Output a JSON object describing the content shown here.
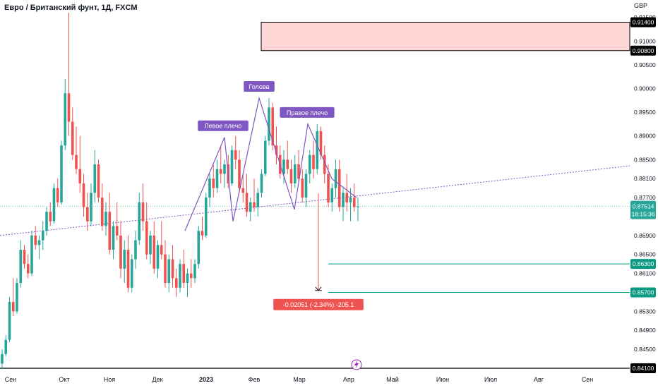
{
  "chart_data": {
    "type": "candlestick",
    "symbol_title": "Евро / Британский фунт, 1Д, FXCM",
    "currency": "GBP",
    "colors": {
      "up": "#26a69a",
      "down": "#ef5350",
      "pattern": "#7e57c2",
      "box_fill": "#ffd6d6",
      "level": "#089981",
      "measure": "#ef5350"
    },
    "y_range": [
      0.841,
      0.916
    ],
    "y_ticks": [
      "0.91500",
      "0.91000",
      "0.90500",
      "0.90000",
      "0.89500",
      "0.89000",
      "0.88500",
      "0.88100",
      "0.87700",
      "0.86900",
      "0.86500",
      "0.86100",
      "0.85300",
      "0.84900",
      "0.84500"
    ],
    "x_labels": [
      "Сен",
      "Окт",
      "Ноя",
      "Дек",
      "2023",
      "Фев",
      "Мар",
      "Апр",
      "Май",
      "Июн",
      "Июл",
      "Авг",
      "Сен"
    ],
    "current_price": {
      "value": "0.87514",
      "countdown": "18:15:36"
    },
    "price_tags": [
      {
        "value": "0.91400",
        "style": "box"
      },
      {
        "value": "0.90800",
        "style": "box"
      },
      {
        "value": "0.86300",
        "style": "green"
      },
      {
        "value": "0.85700",
        "style": "green"
      },
      {
        "value": "0.84100",
        "style": "box"
      }
    ],
    "supply_zone": {
      "top": 0.914,
      "bottom": 0.908
    },
    "support_line": {
      "price": 0.841
    },
    "target_levels": [
      0.863,
      0.857
    ],
    "pattern_labels": [
      {
        "text": "Левое плечо",
        "price": 0.8897
      },
      {
        "text": "Голова",
        "price": 0.898
      },
      {
        "text": "Правое плечо",
        "price": 0.8925
      }
    ],
    "measure_label": "-0.02051 (-2.34%) -205.1",
    "measure_range": [
      0.8779,
      0.8574
    ],
    "neckline": {
      "from_price": 0.869,
      "to_price": 0.8837
    },
    "candles": [
      [
        0.842,
        0.845,
        0.8408,
        0.844
      ],
      [
        0.844,
        0.848,
        0.8435,
        0.847
      ],
      [
        0.847,
        0.856,
        0.8465,
        0.855
      ],
      [
        0.855,
        0.86,
        0.852,
        0.853
      ],
      [
        0.853,
        0.86,
        0.8525,
        0.859
      ],
      [
        0.859,
        0.868,
        0.858,
        0.866
      ],
      [
        0.866,
        0.867,
        0.862,
        0.863
      ],
      [
        0.863,
        0.865,
        0.86,
        0.861
      ],
      [
        0.861,
        0.87,
        0.8605,
        0.869
      ],
      [
        0.869,
        0.871,
        0.866,
        0.867
      ],
      [
        0.867,
        0.869,
        0.864,
        0.868
      ],
      [
        0.868,
        0.872,
        0.866,
        0.87
      ],
      [
        0.87,
        0.875,
        0.869,
        0.874
      ],
      [
        0.874,
        0.876,
        0.871,
        0.872
      ],
      [
        0.872,
        0.88,
        0.8715,
        0.879
      ],
      [
        0.879,
        0.881,
        0.875,
        0.876
      ],
      [
        0.876,
        0.889,
        0.8755,
        0.888
      ],
      [
        0.888,
        0.902,
        0.887,
        0.899
      ],
      [
        0.899,
        0.916,
        0.89,
        0.893
      ],
      [
        0.893,
        0.896,
        0.885,
        0.886
      ],
      [
        0.886,
        0.892,
        0.882,
        0.883
      ],
      [
        0.883,
        0.89,
        0.878,
        0.88
      ],
      [
        0.88,
        0.882,
        0.873,
        0.875
      ],
      [
        0.875,
        0.878,
        0.87,
        0.872
      ],
      [
        0.872,
        0.88,
        0.871,
        0.878
      ],
      [
        0.878,
        0.887,
        0.876,
        0.884
      ],
      [
        0.884,
        0.885,
        0.876,
        0.877
      ],
      [
        0.877,
        0.88,
        0.87,
        0.871
      ],
      [
        0.871,
        0.876,
        0.869,
        0.874
      ],
      [
        0.874,
        0.878,
        0.865,
        0.866
      ],
      [
        0.866,
        0.872,
        0.864,
        0.871
      ],
      [
        0.871,
        0.876,
        0.868,
        0.869
      ],
      [
        0.869,
        0.872,
        0.86,
        0.862
      ],
      [
        0.862,
        0.868,
        0.859,
        0.866
      ],
      [
        0.866,
        0.869,
        0.857,
        0.858
      ],
      [
        0.858,
        0.865,
        0.857,
        0.864
      ],
      [
        0.864,
        0.87,
        0.862,
        0.868
      ],
      [
        0.868,
        0.878,
        0.867,
        0.876
      ],
      [
        0.876,
        0.88,
        0.87,
        0.872
      ],
      [
        0.872,
        0.876,
        0.864,
        0.865
      ],
      [
        0.865,
        0.87,
        0.863,
        0.869
      ],
      [
        0.869,
        0.872,
        0.861,
        0.862
      ],
      [
        0.862,
        0.868,
        0.86,
        0.867
      ],
      [
        0.867,
        0.872,
        0.864,
        0.865
      ],
      [
        0.865,
        0.868,
        0.858,
        0.859
      ],
      [
        0.859,
        0.865,
        0.857,
        0.864
      ],
      [
        0.864,
        0.867,
        0.858,
        0.86
      ],
      [
        0.86,
        0.862,
        0.856,
        0.858
      ],
      [
        0.858,
        0.864,
        0.857,
        0.863
      ],
      [
        0.863,
        0.866,
        0.858,
        0.859
      ],
      [
        0.859,
        0.862,
        0.856,
        0.861
      ],
      [
        0.861,
        0.864,
        0.858,
        0.86
      ],
      [
        0.86,
        0.864,
        0.859,
        0.863
      ],
      [
        0.863,
        0.871,
        0.862,
        0.87
      ],
      [
        0.87,
        0.873,
        0.868,
        0.869
      ],
      [
        0.869,
        0.878,
        0.8685,
        0.877
      ],
      [
        0.877,
        0.882,
        0.875,
        0.881
      ],
      [
        0.881,
        0.884,
        0.877,
        0.879
      ],
      [
        0.879,
        0.885,
        0.878,
        0.883
      ],
      [
        0.883,
        0.888,
        0.88,
        0.882
      ],
      [
        0.882,
        0.885,
        0.879,
        0.884
      ],
      [
        0.884,
        0.886,
        0.879,
        0.88
      ],
      [
        0.88,
        0.888,
        0.8795,
        0.887
      ],
      [
        0.887,
        0.89,
        0.883,
        0.885
      ],
      [
        0.885,
        0.887,
        0.878,
        0.879
      ],
      [
        0.879,
        0.882,
        0.876,
        0.878
      ],
      [
        0.878,
        0.882,
        0.873,
        0.874
      ],
      [
        0.874,
        0.877,
        0.872,
        0.876
      ],
      [
        0.876,
        0.881,
        0.874,
        0.875
      ],
      [
        0.875,
        0.879,
        0.873,
        0.878
      ],
      [
        0.878,
        0.883,
        0.877,
        0.882
      ],
      [
        0.882,
        0.89,
        0.8815,
        0.889
      ],
      [
        0.889,
        0.898,
        0.888,
        0.896
      ],
      [
        0.896,
        0.897,
        0.887,
        0.888
      ],
      [
        0.888,
        0.892,
        0.884,
        0.886
      ],
      [
        0.886,
        0.888,
        0.881,
        0.882
      ],
      [
        0.882,
        0.887,
        0.88,
        0.885
      ],
      [
        0.885,
        0.889,
        0.882,
        0.883
      ],
      [
        0.883,
        0.885,
        0.878,
        0.88
      ],
      [
        0.88,
        0.886,
        0.879,
        0.884
      ],
      [
        0.884,
        0.887,
        0.88,
        0.881
      ],
      [
        0.881,
        0.883,
        0.876,
        0.877
      ],
      [
        0.877,
        0.883,
        0.875,
        0.882
      ],
      [
        0.882,
        0.887,
        0.88,
        0.886
      ],
      [
        0.886,
        0.889,
        0.881,
        0.883
      ],
      [
        0.883,
        0.8925,
        0.882,
        0.891
      ],
      [
        0.891,
        0.892,
        0.885,
        0.886
      ],
      [
        0.886,
        0.888,
        0.88,
        0.882
      ],
      [
        0.882,
        0.884,
        0.875,
        0.876
      ],
      [
        0.876,
        0.88,
        0.874,
        0.879
      ],
      [
        0.879,
        0.885,
        0.877,
        0.883
      ],
      [
        0.883,
        0.885,
        0.874,
        0.875
      ],
      [
        0.875,
        0.879,
        0.872,
        0.878
      ],
      [
        0.878,
        0.882,
        0.874,
        0.876
      ],
      [
        0.876,
        0.879,
        0.872,
        0.877
      ],
      [
        0.877,
        0.88,
        0.874,
        0.875
      ],
      [
        0.875,
        0.877,
        0.872,
        0.8751
      ]
    ]
  }
}
